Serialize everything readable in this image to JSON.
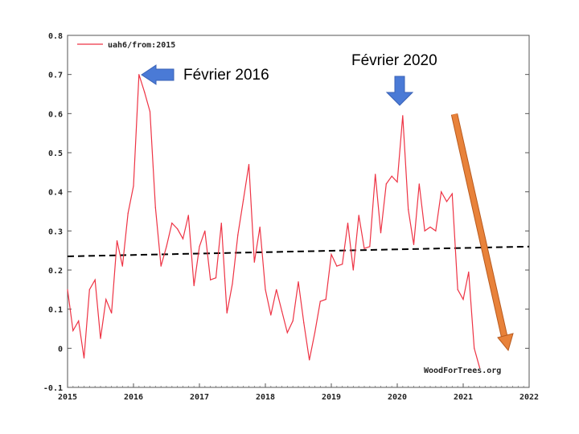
{
  "chart_data": {
    "type": "line",
    "title": "",
    "xlabel": "",
    "ylabel": "",
    "xlim": [
      2015,
      2022
    ],
    "ylim": [
      -0.1,
      0.8
    ],
    "grid": false,
    "legend_position": "top-left",
    "x_ticks": [
      "2015",
      "2016",
      "2017",
      "2018",
      "2019",
      "2020",
      "2021",
      "2022"
    ],
    "y_ticks": [
      "-0.1",
      "0",
      "0.1",
      "0.2",
      "0.3",
      "0.4",
      "0.5",
      "0.6",
      "0.7",
      "0.8"
    ],
    "series": [
      {
        "name": "uah6/from:2015",
        "color": "#ee3344",
        "start_year": 2015,
        "values": [
          0.15,
          0.045,
          0.07,
          -0.025,
          0.15,
          0.175,
          0.025,
          0.125,
          0.09,
          0.275,
          0.21,
          0.345,
          0.415,
          0.7,
          0.655,
          0.605,
          0.36,
          0.21,
          0.26,
          0.32,
          0.305,
          0.28,
          0.34,
          0.16,
          0.26,
          0.3,
          0.175,
          0.18,
          0.32,
          0.09,
          0.165,
          0.29,
          0.38,
          0.47,
          0.22,
          0.31,
          0.15,
          0.085,
          0.15,
          0.095,
          0.04,
          0.07,
          0.17,
          0.065,
          -0.03,
          0.04,
          0.12,
          0.125,
          0.24,
          0.21,
          0.215,
          0.32,
          0.2,
          0.34,
          0.255,
          0.26,
          0.445,
          0.295,
          0.42,
          0.44,
          0.425,
          0.595,
          0.355,
          0.265,
          0.42,
          0.3,
          0.31,
          0.3,
          0.4,
          0.375,
          0.395,
          0.15,
          0.125,
          0.195,
          0.0,
          -0.05
        ]
      }
    ],
    "trend": {
      "style": "dashed",
      "color": "#000000",
      "from": [
        2015,
        0.235
      ],
      "to": [
        2022,
        0.26
      ]
    },
    "annotations": [
      {
        "text": "Février 2016",
        "arrow": "blue-left",
        "x": 2016.08,
        "y": 0.7
      },
      {
        "text": "Février 2020",
        "arrow": "blue-down",
        "x": 2020.08,
        "y": 0.595
      },
      {
        "arrow": "orange-diagonal",
        "from": [
          2020.85,
          0.6
        ],
        "to": [
          2021.7,
          -0.005
        ]
      }
    ],
    "credit": "WoodForTrees.org"
  },
  "colors": {
    "series_line": "#ee3344",
    "arrow_blue": "#4a7ad6",
    "arrow_orange": "#e8823a",
    "trend": "#000000"
  }
}
